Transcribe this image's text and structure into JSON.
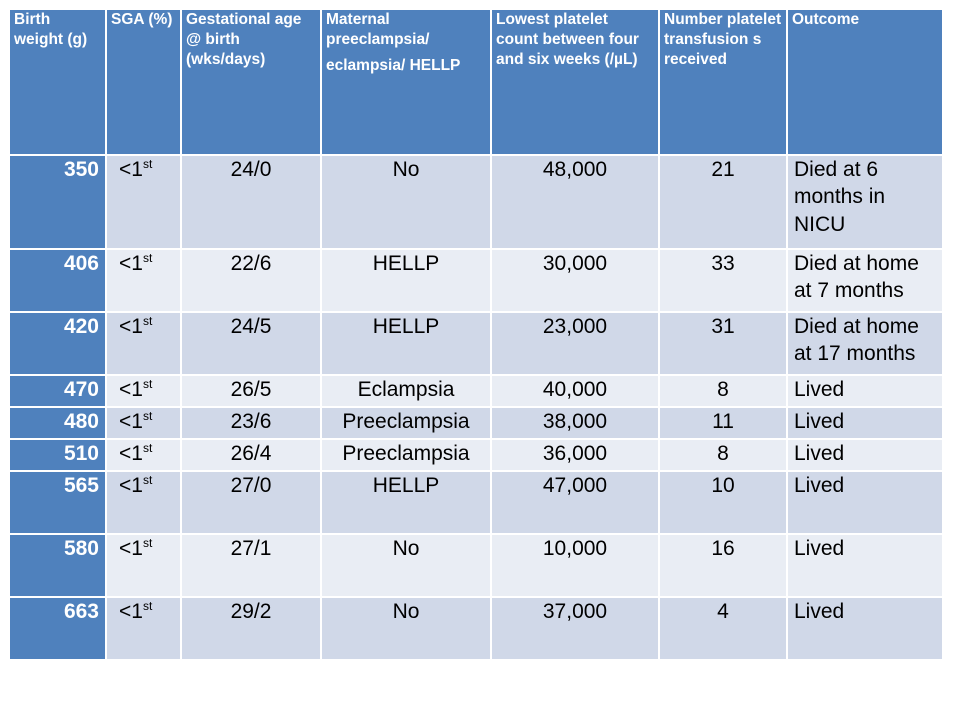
{
  "table": {
    "headers": [
      [
        "Birth weight (g)"
      ],
      [
        "SGA (%)"
      ],
      [
        "Gestational age @ birth (wks/days)"
      ],
      [
        "Maternal preeclampsia/",
        "eclampsia/ HELLP"
      ],
      [
        "Lowest platelet count between four and six weeks (/µL)"
      ],
      [
        "Number platelet transfusion s received"
      ],
      [
        "Outcome"
      ]
    ],
    "rows": [
      {
        "bw": "350",
        "sga": "<1",
        "sga_sup": "st",
        "ga": "24/0",
        "maternal": "No",
        "platelet": "48,000",
        "transfusions": "21",
        "outcome": "Died at 6 months in NICU"
      },
      {
        "bw": "406",
        "sga": "<1",
        "sga_sup": "st",
        "ga": "22/6",
        "maternal": "HELLP",
        "platelet": "30,000",
        "transfusions": "33",
        "outcome": "Died at home at 7 months"
      },
      {
        "bw": "420",
        "sga": "<1",
        "sga_sup": "st",
        "ga": "24/5",
        "maternal": "HELLP",
        "platelet": "23,000",
        "transfusions": "31",
        "outcome": "Died at home at 17 months"
      },
      {
        "bw": "470",
        "sga": "<1",
        "sga_sup": "st",
        "ga": "26/5",
        "maternal": "Eclampsia",
        "platelet": "40,000",
        "transfusions": "8",
        "outcome": "Lived"
      },
      {
        "bw": "480",
        "sga": "<1",
        "sga_sup": "st",
        "ga": "23/6",
        "maternal": "Preeclampsia",
        "platelet": "38,000",
        "transfusions": "11",
        "outcome": "Lived"
      },
      {
        "bw": "510",
        "sga": "<1",
        "sga_sup": "st",
        "ga": "26/4",
        "maternal": "Preeclampsia",
        "platelet": "36,000",
        "transfusions": "8",
        "outcome": "Lived"
      },
      {
        "bw": "565",
        "sga": "<1",
        "sga_sup": "st",
        "ga": "27/0",
        "maternal": "HELLP",
        "platelet": "47,000",
        "transfusions": "10",
        "outcome": "Lived"
      },
      {
        "bw": "580",
        "sga": "<1",
        "sga_sup": "st",
        "ga": "27/1",
        "maternal": "No",
        "platelet": "10,000",
        "transfusions": "16",
        "outcome": "Lived"
      },
      {
        "bw": "663",
        "sga": "<1",
        "sga_sup": "st",
        "ga": "29/2",
        "maternal": "No",
        "platelet": "37,000",
        "transfusions": "4",
        "outcome": "Lived"
      }
    ],
    "colors": {
      "header_bg": "#4f81bd",
      "row_odd": "#d0d8e8",
      "row_even": "#e9edf4"
    }
  }
}
